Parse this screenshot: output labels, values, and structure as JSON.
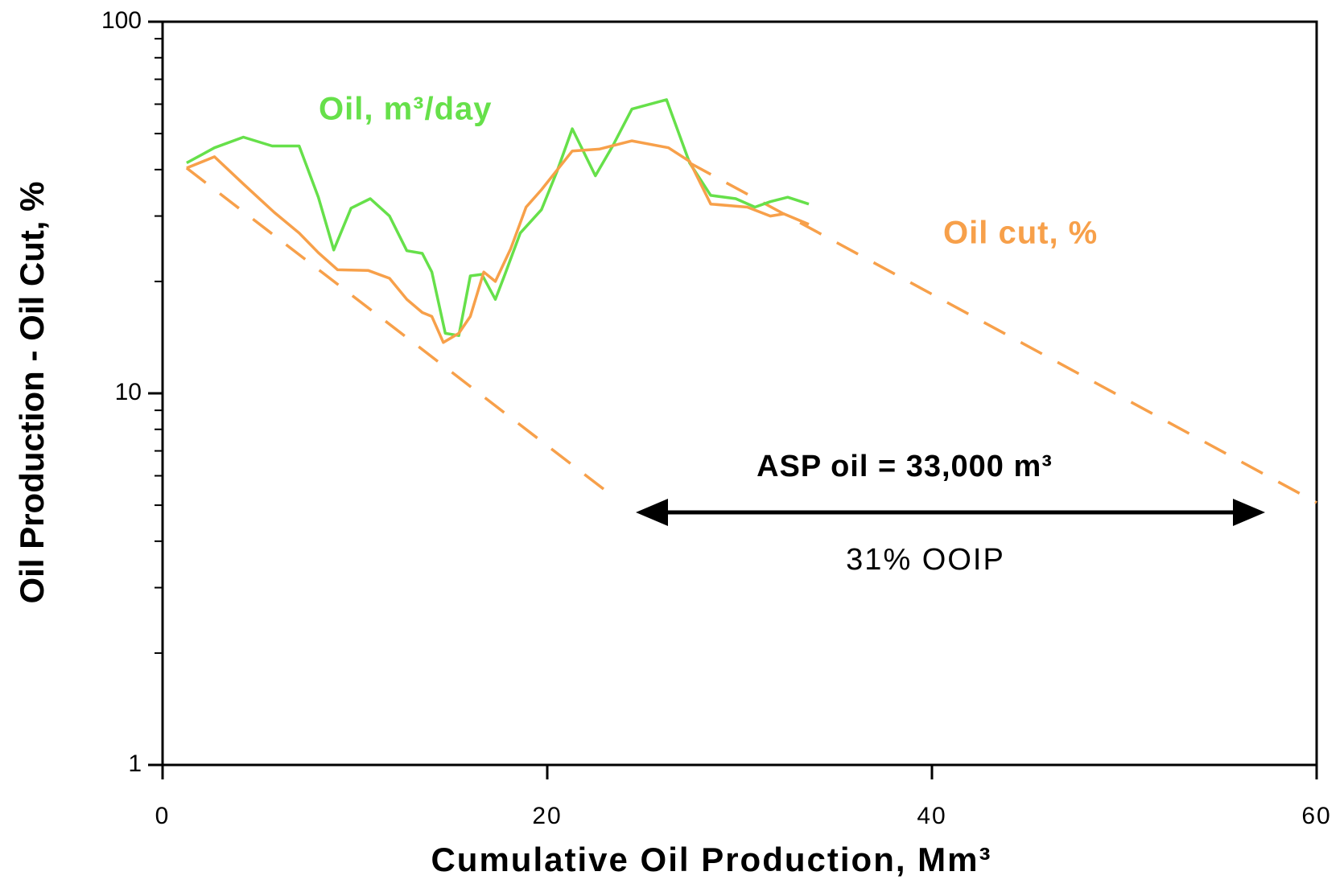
{
  "chart_data": {
    "type": "line",
    "x_label": "Cumulative Oil Production, Mm³",
    "y_label": "Oil Production - Oil Cut, %",
    "xlim": [
      0,
      60
    ],
    "xticks": [
      0,
      20,
      40,
      60
    ],
    "ylim": [
      1,
      100
    ],
    "y_log": true,
    "yticks": [
      1,
      10,
      100
    ],
    "y_minor_ticks": [
      2,
      3,
      4,
      5,
      6,
      7,
      8,
      9,
      20,
      30,
      40,
      50,
      60,
      70,
      80,
      90
    ],
    "series": [
      {
        "name": "Oil, m³/day",
        "color": "#66e04a",
        "x": [
          1.25,
          2.7,
          4.2,
          5.7,
          7.1,
          8.1,
          8.9,
          9.8,
          10.8,
          11.8,
          12.7,
          13.5,
          14.0,
          14.7,
          15.4,
          16.0,
          16.6,
          17.3,
          17.8,
          18.6,
          19.7,
          20.5,
          21.3,
          22.5,
          23.4,
          24.4,
          26.2,
          27.4,
          28.5,
          29.8,
          30.8,
          31.6,
          32.5,
          33.6
        ],
        "values": [
          41.7,
          45.8,
          48.9,
          46.3,
          46.3,
          33.7,
          24.3,
          31.5,
          33.4,
          30.0,
          24.2,
          23.8,
          21.2,
          14.5,
          14.3,
          20.7,
          20.9,
          17.9,
          20.9,
          27.0,
          31.2,
          39.5,
          51.5,
          38.5,
          46.3,
          58.2,
          61.7,
          41.7,
          34.1,
          33.4,
          31.7,
          32.8,
          33.7,
          32.3
        ]
      },
      {
        "name": "Oil cut, %",
        "color": "#f7a04a",
        "x": [
          1.25,
          2.7,
          4.2,
          5.8,
          7.1,
          8.1,
          9.1,
          10.7,
          11.8,
          12.7,
          13.5,
          14.0,
          14.6,
          15.4,
          16.0,
          16.7,
          17.3,
          18.1,
          18.9,
          19.7,
          21.3,
          22.7,
          24.4,
          26.3,
          27.4,
          28.5,
          30.4,
          31.6,
          32.3,
          33.6
        ],
        "values": [
          40.4,
          43.3,
          36.6,
          30.7,
          27.0,
          23.9,
          21.5,
          21.4,
          20.4,
          17.9,
          16.5,
          16.1,
          13.7,
          14.5,
          16.1,
          21.2,
          20.0,
          24.5,
          31.7,
          35.3,
          44.9,
          45.4,
          47.8,
          45.8,
          42.1,
          32.3,
          31.7,
          30.0,
          30.4,
          28.5
        ]
      }
    ],
    "trend_lines": [
      {
        "color": "#f7a04a",
        "dashed": true,
        "x": [
          1.25,
          23.1
        ],
        "values": [
          40.4,
          5.44
        ]
      },
      {
        "color": "#f7a04a",
        "dashed": true,
        "x": [
          27.4,
          60
        ],
        "values": [
          41.7,
          5.08
        ]
      }
    ],
    "annotations": [
      "ASP oil = 33,000 m³",
      "31% OOIP"
    ]
  }
}
